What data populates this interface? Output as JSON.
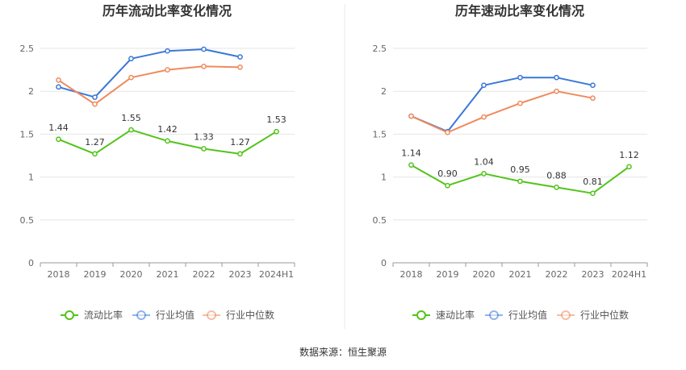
{
  "source_text": "数据来源：恒生聚源",
  "chart_data": [
    {
      "type": "line",
      "title": "历年流动比率变化情况",
      "categories": [
        "2018",
        "2019",
        "2020",
        "2021",
        "2022",
        "2023",
        "2024H1"
      ],
      "ylim": [
        0,
        2.5
      ],
      "yticks": [
        0,
        0.5,
        1,
        1.5,
        2,
        2.5
      ],
      "ytick_labels": [
        "0",
        "0.5",
        "1",
        "1.5",
        "2",
        "2.5"
      ],
      "grid": true,
      "legend_position": "bottom",
      "series": [
        {
          "name": "流动比率",
          "color": "#52c41a",
          "values": [
            1.44,
            1.27,
            1.55,
            1.42,
            1.33,
            1.27,
            1.53
          ],
          "labels": [
            "1.44",
            "1.27",
            "1.55",
            "1.42",
            "1.33",
            "1.27",
            "1.53"
          ]
        },
        {
          "name": "行业均值",
          "color": "#3a78d8",
          "values": [
            2.05,
            1.93,
            2.38,
            2.47,
            2.49,
            2.4,
            null
          ]
        },
        {
          "name": "行业中位数",
          "color": "#f08a5d",
          "values": [
            2.13,
            1.85,
            2.16,
            2.25,
            2.29,
            2.28,
            null
          ]
        }
      ]
    },
    {
      "type": "line",
      "title": "历年速动比率变化情况",
      "categories": [
        "2018",
        "2019",
        "2020",
        "2021",
        "2022",
        "2023",
        "2024H1"
      ],
      "ylim": [
        0,
        2.5
      ],
      "yticks": [
        0,
        0.5,
        1,
        1.5,
        2,
        2.5
      ],
      "ytick_labels": [
        "0",
        "0.5",
        "1",
        "1.5",
        "2",
        "2.5"
      ],
      "grid": true,
      "legend_position": "bottom",
      "series": [
        {
          "name": "速动比率",
          "color": "#52c41a",
          "values": [
            1.14,
            0.9,
            1.04,
            0.95,
            0.88,
            0.81,
            1.12
          ],
          "labels": [
            "1.14",
            "0.90",
            "1.04",
            "0.95",
            "0.88",
            "0.81",
            "1.12"
          ]
        },
        {
          "name": "行业均值",
          "color": "#3a78d8",
          "values": [
            1.71,
            1.53,
            2.07,
            2.16,
            2.16,
            2.07,
            null
          ]
        },
        {
          "name": "行业中位数",
          "color": "#f08a5d",
          "values": [
            1.71,
            1.52,
            1.7,
            1.86,
            2.0,
            1.92,
            null
          ]
        }
      ]
    }
  ]
}
